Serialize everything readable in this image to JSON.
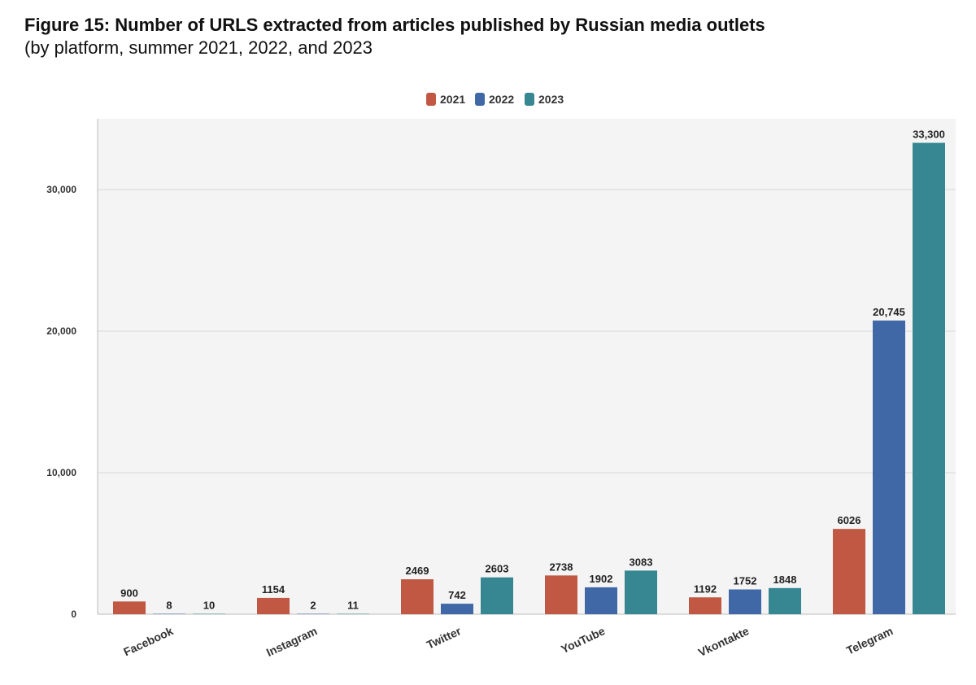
{
  "header": {
    "title": "Figure 15: Number of URLS extracted from articles published by Russian media outlets",
    "subtitle": "(by platform, summer 2021, 2022, and 2023"
  },
  "chart_data": {
    "type": "bar",
    "title": "Figure 15: Number of URLS extracted from articles published by Russian media outlets",
    "subtitle": "(by platform, summer 2021, 2022, and 2023",
    "categories": [
      "Facebook",
      "Instagram",
      "Twitter",
      "YouTube",
      "Vkontakte",
      "Telegram"
    ],
    "series": [
      {
        "name": "2021",
        "color": "#c05843",
        "values": [
          900,
          1154,
          2469,
          2738,
          1192,
          6026
        ],
        "labels": [
          "900",
          "1154",
          "2469",
          "2738",
          "1192",
          "6026"
        ]
      },
      {
        "name": "2022",
        "color": "#4168a6",
        "values": [
          8,
          2,
          742,
          1902,
          1752,
          20745
        ],
        "labels": [
          "8",
          "2",
          "742",
          "1902",
          "1752",
          "20,745"
        ]
      },
      {
        "name": "2023",
        "color": "#368791",
        "values": [
          10,
          11,
          2603,
          3083,
          1848,
          33300
        ],
        "labels": [
          "10",
          "11",
          "2603",
          "3083",
          "1848",
          "33,300"
        ]
      }
    ],
    "y_ticks": [
      0,
      10000,
      20000,
      30000
    ],
    "y_tick_labels": [
      "0",
      "10,000",
      "20,000",
      "30,000"
    ],
    "ylim": [
      0,
      35000
    ],
    "legend_position": "top-center",
    "grid": true,
    "background_color": "#f4f4f4",
    "grid_color": "#d9d9d9"
  }
}
